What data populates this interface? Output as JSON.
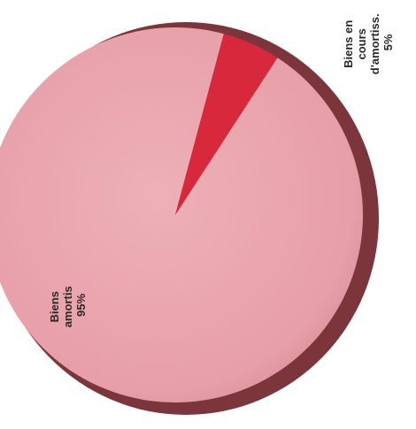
{
  "chart_data": {
    "type": "pie",
    "title": "",
    "slices": [
      {
        "label": "Biens amortis",
        "value": 95,
        "value_label": "95%",
        "color": "#e9a2ab"
      },
      {
        "label": "Biens en cours d'amortiss.",
        "value": 5,
        "value_label": "5%",
        "color": "#d8293c"
      }
    ],
    "legend": "none",
    "label_lines": {
      "slice_0": [
        "Biens",
        "amortis",
        "95%"
      ],
      "slice_1": [
        "Biens en",
        "cours",
        "d'amortiss.",
        "5%"
      ]
    }
  }
}
